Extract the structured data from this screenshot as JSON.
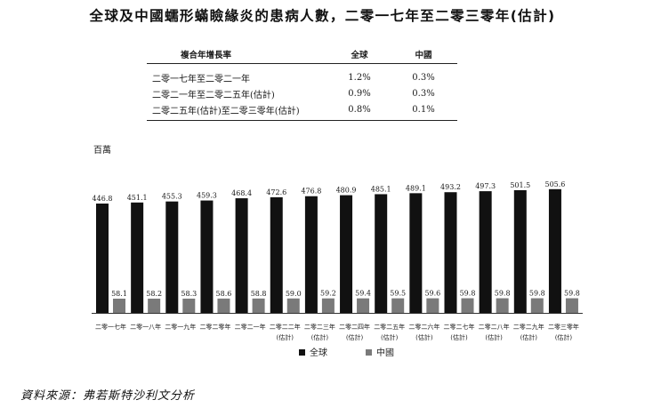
{
  "title": "全球及中國蠕形蟎瞼緣炎的患病人數，二零一七年至二零三零年(估計)",
  "cagr_table": {
    "headers": [
      "複合年增長率",
      "全球",
      "中國"
    ],
    "rows": [
      [
        "二零一七年至二零二一年",
        "1.2%",
        "0.3%"
      ],
      [
        "二零二一年至二零二五年(估計)",
        "0.9%",
        "0.3%"
      ],
      [
        "二零二五年(估計)至二零三零年(估計)",
        "0.8%",
        "0.1%"
      ]
    ]
  },
  "source": "資料來源：弗若斯特沙利文分析",
  "chart_data": {
    "type": "bar",
    "ylabel": "百萬",
    "categories": [
      [
        "二零一七年"
      ],
      [
        "二零一八年"
      ],
      [
        "二零一九年"
      ],
      [
        "二零二零年"
      ],
      [
        "二零二一年"
      ],
      [
        "二零二二年",
        "(估計)"
      ],
      [
        "二零二三年",
        "(估計)"
      ],
      [
        "二零二四年",
        "(估計)"
      ],
      [
        "二零二五年",
        "(估計)"
      ],
      [
        "二零二六年",
        "(估計)"
      ],
      [
        "二零二七年",
        "(估計)"
      ],
      [
        "二零二八年",
        "(估計)"
      ],
      [
        "二零二九年",
        "(估計)"
      ],
      [
        "二零三零年",
        "(估計)"
      ]
    ],
    "series": [
      {
        "name": "全球",
        "color": "#111111",
        "values": [
          446.8,
          451.1,
          455.3,
          459.3,
          468.4,
          472.6,
          476.8,
          480.9,
          485.1,
          489.1,
          493.2,
          497.3,
          501.5,
          505.6
        ]
      },
      {
        "name": "中國",
        "color": "#7a7a7a",
        "values": [
          58.1,
          58.2,
          58.3,
          58.6,
          58.8,
          59.0,
          59.2,
          59.4,
          59.5,
          59.6,
          59.8,
          59.8,
          59.8,
          59.8
        ]
      }
    ],
    "value_labels": [
      [
        "446.8",
        "451.1",
        "455.3",
        "459.3",
        "468.4",
        "472.6",
        "476.8",
        "480.9",
        "485.1",
        "489.1",
        "493.2",
        "497.3",
        "501.5",
        "505.6"
      ],
      [
        "58.1",
        "58.2",
        "58.3",
        "58.6",
        "58.8",
        "59.0",
        "59.2",
        "59.4",
        "59.5",
        "59.6",
        "59.8",
        "59.8",
        "59.8",
        "59.8"
      ]
    ],
    "legend_position": "bottom-center",
    "grid": false
  }
}
